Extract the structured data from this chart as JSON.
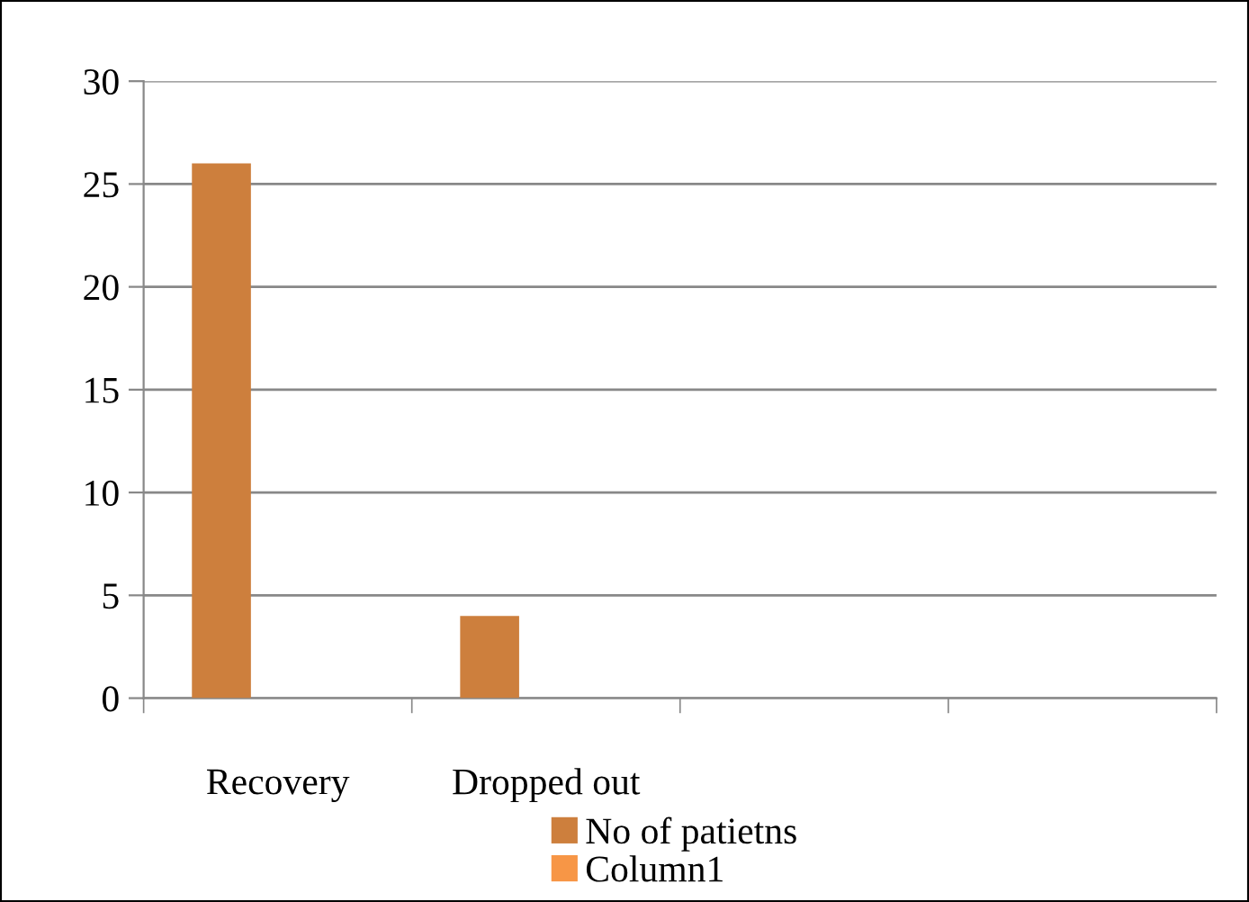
{
  "chart_data": {
    "type": "bar",
    "categories": [
      "Recovery",
      "Dropped out",
      null,
      null
    ],
    "series": [
      {
        "name": "No of patietns",
        "color": "#cd7f3d",
        "values": [
          26,
          4,
          null,
          null
        ]
      },
      {
        "name": "Column1",
        "color": "#f79646",
        "values": [
          null,
          null,
          null,
          null
        ]
      }
    ],
    "ylim": [
      0,
      30
    ],
    "yticks": [
      0,
      5,
      10,
      15,
      20,
      25,
      30
    ],
    "grid": "y",
    "legend": "bottom"
  }
}
